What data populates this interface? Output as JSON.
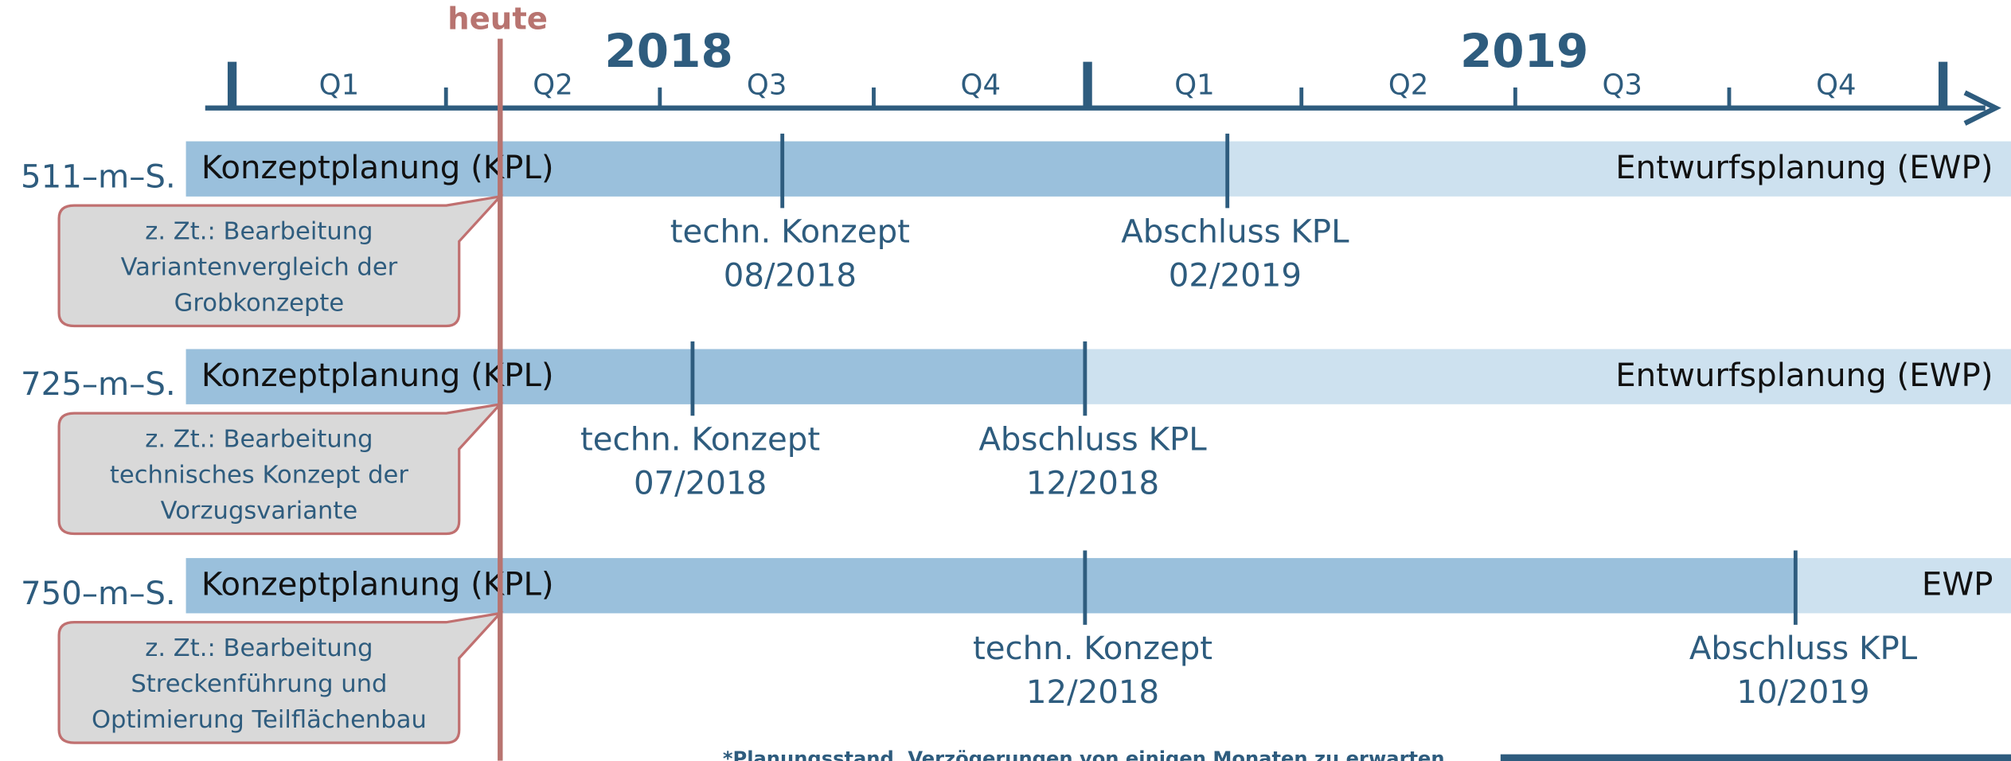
{
  "header": {
    "today": "heute",
    "years": [
      "2018",
      "2019"
    ],
    "quarters": [
      "Q1",
      "Q2",
      "Q3",
      "Q4",
      "Q1",
      "Q2",
      "Q3",
      "Q4"
    ]
  },
  "rows": [
    {
      "label": "511–m–S.",
      "phase_current": "Konzeptplanung (KPL)",
      "phase_next": "Entwurfsplanung (EWP)",
      "milestones": [
        {
          "label": "techn. Konzept",
          "date": "08/2018"
        },
        {
          "label": "Abschluss KPL",
          "date": "02/2019"
        }
      ],
      "note": [
        "z. Zt.: Bearbeitung",
        "Variantenvergleich der",
        "Grobkonzepte"
      ]
    },
    {
      "label": "725–m–S.",
      "phase_current": "Konzeptplanung (KPL)",
      "phase_next": "Entwurfsplanung (EWP)",
      "milestones": [
        {
          "label": "techn. Konzept",
          "date": "07/2018"
        },
        {
          "label": "Abschluss KPL",
          "date": "12/2018"
        }
      ],
      "note": [
        "z. Zt.: Bearbeitung",
        "technisches Konzept der",
        "Vorzugsvariante"
      ]
    },
    {
      "label": "750–m–S.",
      "phase_current": "Konzeptplanung (KPL)",
      "phase_next": "EWP",
      "milestones": [
        {
          "label": "techn. Konzept",
          "date": "12/2018"
        },
        {
          "label": "Abschluss KPL",
          "date": "10/2019"
        }
      ],
      "note": [
        "z. Zt.: Bearbeitung",
        "Streckenführung und",
        "Optimierung Teilflächenbau"
      ]
    }
  ],
  "footnote": "*Planungsstand, Verzögerungen von einigen Monaten zu erwarten"
}
